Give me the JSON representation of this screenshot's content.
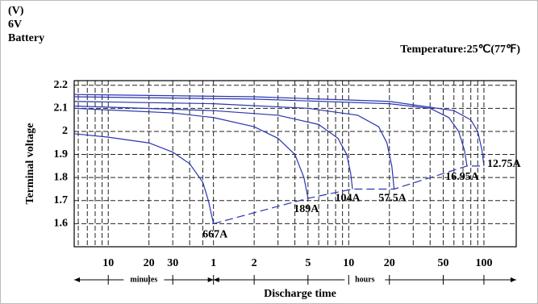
{
  "chart_data": {
    "type": "line",
    "corner_label": [
      "(V)",
      "6V",
      "Battery"
    ],
    "annotation": "Temperature:25℃(77℉)",
    "ylabel": "Terminal voltage",
    "xlabel": "Discharge time",
    "x_unit_labels": [
      "minutes",
      "hours"
    ],
    "log_x": true,
    "xlim": [
      5.6,
      10400
    ],
    "xticks": [
      10,
      20,
      30,
      {
        "value": 60,
        "label": "1"
      },
      {
        "value": 120,
        "label": "2"
      },
      {
        "value": 300,
        "label": "5"
      },
      {
        "value": 600,
        "label": "10"
      },
      {
        "value": 1200,
        "label": "20"
      },
      {
        "value": 3000,
        "label": "50"
      },
      {
        "value": 6000,
        "label": "100"
      }
    ],
    "xgrid": [
      6,
      7,
      8,
      9,
      10,
      20,
      30,
      40,
      50,
      60,
      120,
      180,
      240,
      300,
      360,
      420,
      480,
      540,
      600,
      1200,
      1800,
      2400,
      3000,
      3600,
      4200,
      4800,
      5400,
      6000
    ],
    "ylim": [
      1.5,
      2.22
    ],
    "yticks": [
      1.6,
      1.7,
      1.8,
      1.9,
      2.0,
      2.1,
      2.2
    ],
    "grid": true,
    "series": [
      {
        "name": "667A",
        "color": "#2a35b0",
        "x": [
          5.6,
          10,
          20,
          30,
          40,
          50,
          55,
          60
        ],
        "values": [
          1.99,
          1.975,
          1.95,
          1.91,
          1.86,
          1.78,
          1.7,
          1.6
        ]
      },
      {
        "name": "189A",
        "color": "#2a35b0",
        "x": [
          5.6,
          30,
          60,
          120,
          180,
          240,
          280,
          300
        ],
        "values": [
          2.1,
          2.08,
          2.06,
          2.02,
          1.97,
          1.9,
          1.8,
          1.71
        ]
      },
      {
        "name": "104A",
        "color": "#2a35b0",
        "x": [
          5.6,
          60,
          180,
          360,
          500,
          580,
          620,
          640
        ],
        "values": [
          2.11,
          2.09,
          2.07,
          2.03,
          1.97,
          1.9,
          1.82,
          1.75
        ]
      },
      {
        "name": "57.5A",
        "color": "#2a35b0",
        "x": [
          5.6,
          60,
          300,
          700,
          1000,
          1150,
          1250,
          1300
        ],
        "values": [
          2.13,
          2.12,
          2.1,
          2.07,
          2.02,
          1.95,
          1.85,
          1.75
        ]
      },
      {
        "name": "16.95A",
        "color": "#2a35b0",
        "x": [
          5.6,
          120,
          1200,
          2400,
          3300,
          3900,
          4300,
          4500
        ],
        "values": [
          2.15,
          2.14,
          2.12,
          2.1,
          2.06,
          2.0,
          1.92,
          1.85
        ]
      },
      {
        "name": "12.75A",
        "color": "#2a35b0",
        "x": [
          5.6,
          120,
          1200,
          3600,
          4800,
          5400,
          5800,
          6000
        ],
        "values": [
          2.16,
          2.15,
          2.13,
          2.09,
          2.05,
          2.0,
          1.92,
          1.85
        ]
      }
    ]
  }
}
